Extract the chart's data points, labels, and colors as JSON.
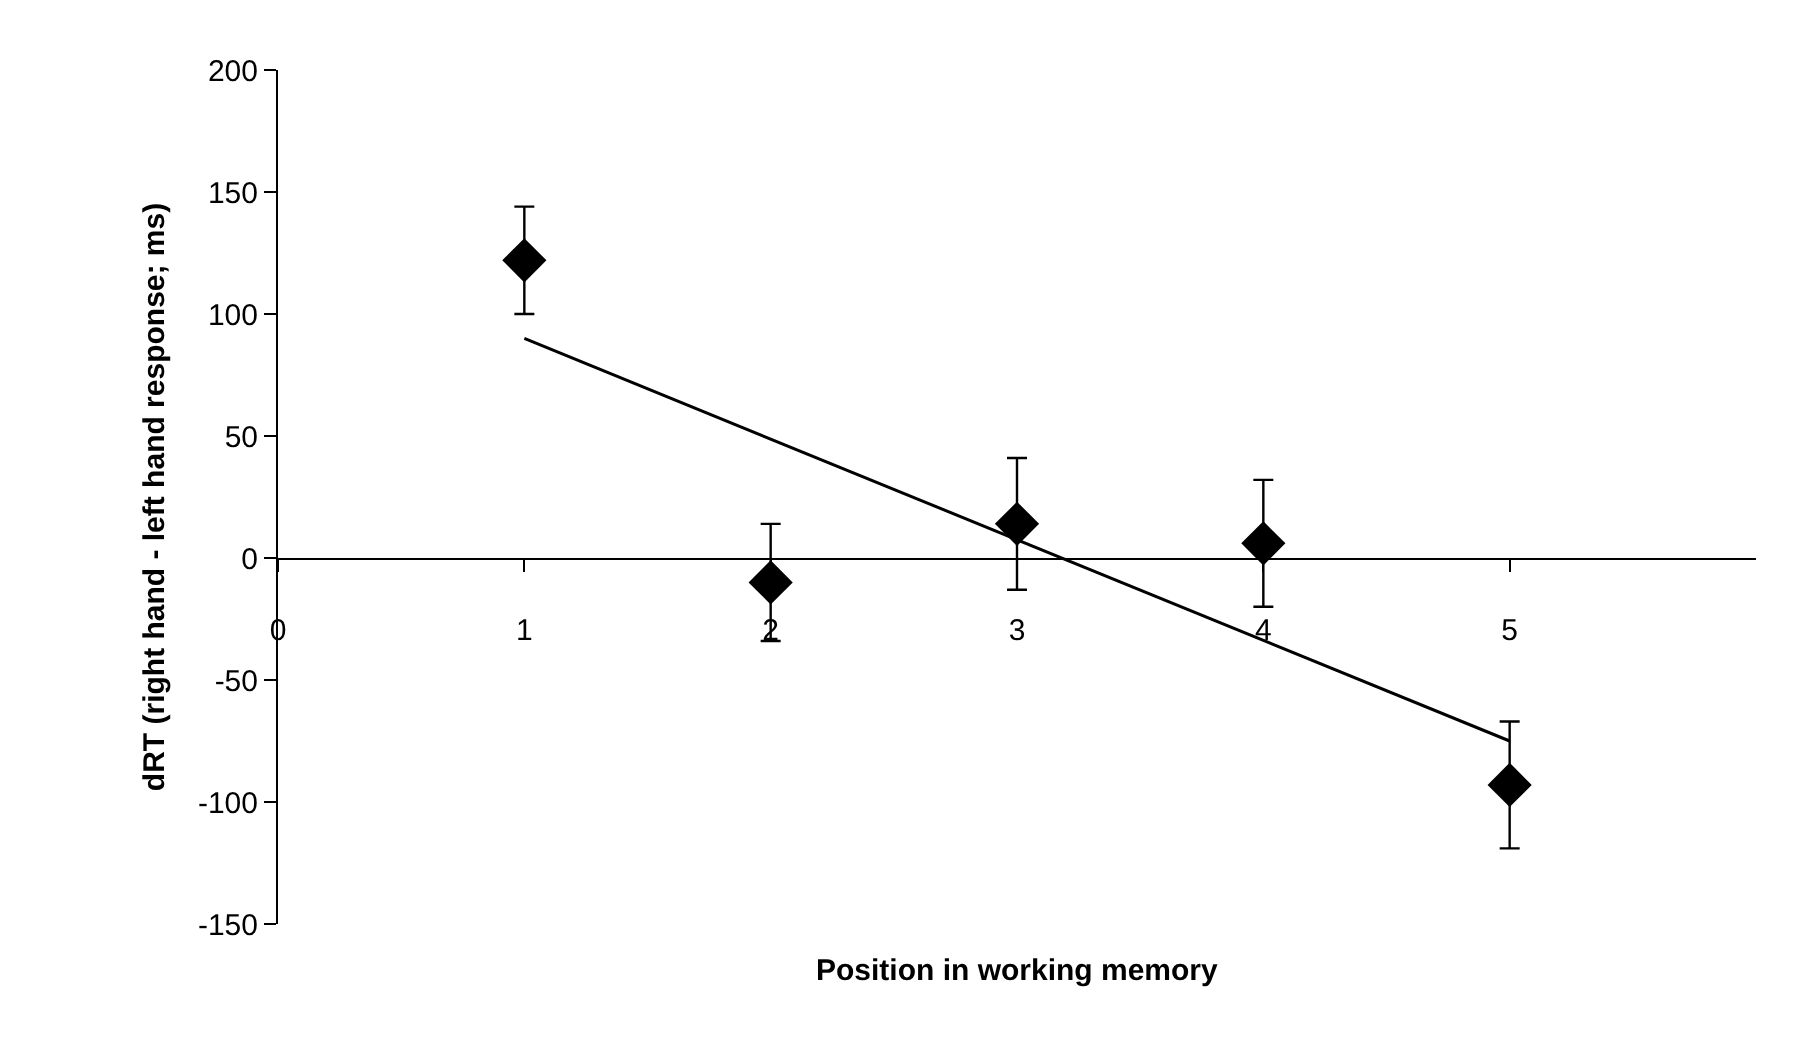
{
  "chart_data": {
    "type": "scatter",
    "xlabel": "Position in working memory",
    "ylabel": "dRT (right hand - left hand response; ms)",
    "series": [
      {
        "color": "#000000",
        "x": [
          1,
          2,
          3,
          4,
          5
        ],
        "values": [
          122,
          -10,
          14,
          6,
          -93
        ],
        "errors": [
          22,
          24,
          27,
          26,
          26
        ],
        "marker": "diamond"
      },
      {
        "type": "line",
        "color": "#000000",
        "x": [
          1,
          5
        ],
        "values": [
          90,
          -75
        ],
        "marker": "none",
        "line_style": "solid"
      }
    ],
    "xlim": [
      0,
      6
    ],
    "xticks": [
      0,
      1,
      2,
      3,
      4,
      5
    ],
    "ylim": [
      -150,
      200
    ],
    "yticks": [
      -150,
      -100,
      -50,
      0,
      50,
      100,
      150,
      200
    ]
  }
}
